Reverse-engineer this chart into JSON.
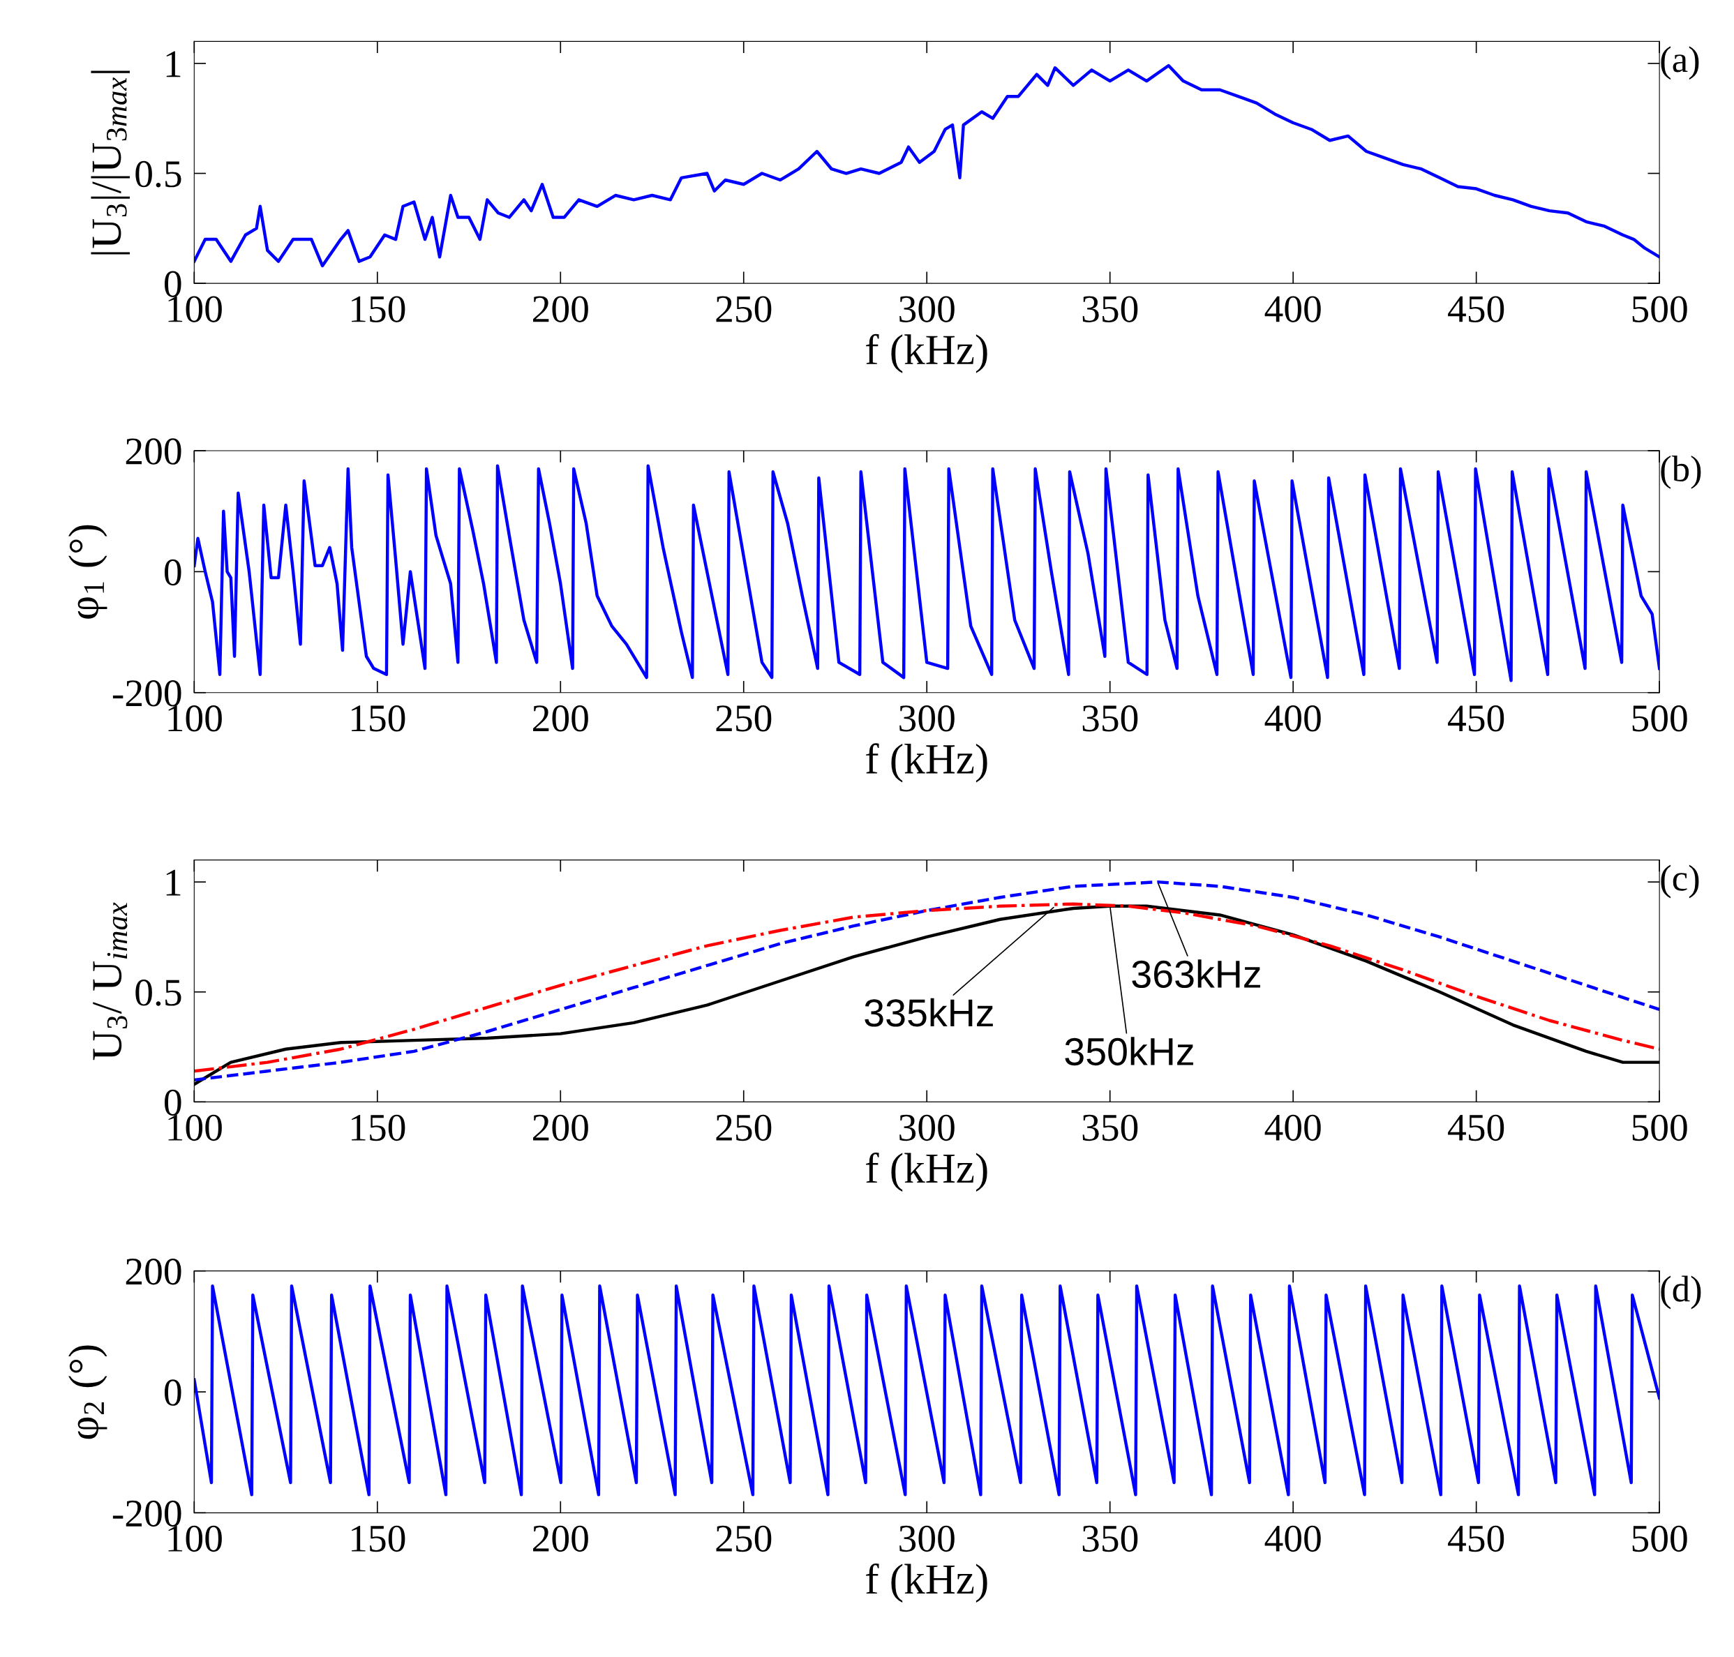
{
  "chart_data": [
    {
      "type": "line",
      "xlabel": "f (kHz)",
      "ylabel": "|U$_{3}$|/|U$_{3max}$|",
      "xlim": [
        100,
        500
      ],
      "xticks": [
        100,
        150,
        200,
        250,
        300,
        350,
        400,
        450,
        500
      ],
      "ylim": [
        0,
        1.1
      ],
      "yticks": [
        0,
        0.5,
        1
      ],
      "annotations": [
        "(a)"
      ],
      "series": [
        {
          "color": "#0000ff",
          "line_style": "solid",
          "x": [
            100,
            103,
            106,
            110,
            114,
            117,
            118,
            120,
            123,
            127,
            132,
            135,
            140,
            142,
            145,
            148,
            152,
            155,
            157,
            160,
            163,
            165,
            167,
            170,
            172,
            175,
            178,
            180,
            183,
            186,
            190,
            192,
            195,
            198,
            201,
            205,
            210,
            215,
            220,
            225,
            230,
            233,
            240,
            242,
            245,
            250,
            255,
            260,
            265,
            270,
            274,
            278,
            282,
            287,
            293,
            295,
            298,
            302,
            305,
            307,
            309,
            310,
            315,
            318,
            322,
            325,
            330,
            333,
            335,
            340,
            345,
            350,
            355,
            360,
            366,
            370,
            375,
            380,
            385,
            390,
            395,
            400,
            405,
            410,
            415,
            420,
            425,
            430,
            435,
            440,
            445,
            450,
            455,
            460,
            465,
            470,
            475,
            480,
            485,
            490,
            493,
            496,
            500
          ],
          "values": [
            0.1,
            0.2,
            0.2,
            0.1,
            0.22,
            0.25,
            0.35,
            0.15,
            0.1,
            0.2,
            0.2,
            0.08,
            0.2,
            0.24,
            0.1,
            0.12,
            0.22,
            0.2,
            0.35,
            0.37,
            0.2,
            0.3,
            0.12,
            0.4,
            0.3,
            0.3,
            0.2,
            0.38,
            0.32,
            0.3,
            0.38,
            0.33,
            0.45,
            0.3,
            0.3,
            0.38,
            0.35,
            0.4,
            0.38,
            0.4,
            0.38,
            0.48,
            0.5,
            0.42,
            0.47,
            0.45,
            0.5,
            0.47,
            0.52,
            0.6,
            0.52,
            0.5,
            0.52,
            0.5,
            0.55,
            0.62,
            0.55,
            0.6,
            0.7,
            0.72,
            0.48,
            0.72,
            0.78,
            0.75,
            0.85,
            0.85,
            0.95,
            0.9,
            0.98,
            0.9,
            0.97,
            0.92,
            0.97,
            0.92,
            0.99,
            0.92,
            0.88,
            0.88,
            0.85,
            0.82,
            0.77,
            0.73,
            0.7,
            0.65,
            0.67,
            0.6,
            0.57,
            0.54,
            0.52,
            0.48,
            0.44,
            0.43,
            0.4,
            0.38,
            0.35,
            0.33,
            0.32,
            0.28,
            0.26,
            0.22,
            0.2,
            0.16,
            0.12
          ]
        }
      ]
    },
    {
      "type": "line",
      "xlabel": "f (kHz)",
      "ylabel": "φ$_{1}$ (°)",
      "xlim": [
        100,
        500
      ],
      "xticks": [
        100,
        150,
        200,
        250,
        300,
        350,
        400,
        450,
        500
      ],
      "ylim": [
        -200,
        200
      ],
      "yticks": [
        -200,
        0,
        200
      ],
      "annotations": [
        "(b)"
      ],
      "series": [
        {
          "color": "#0000ff",
          "line_style": "solid",
          "x": [
            100,
            101,
            103,
            105,
            107,
            108,
            109,
            110,
            111,
            112,
            115,
            118,
            119,
            121,
            123,
            125,
            127,
            129,
            130,
            133,
            135,
            137,
            139,
            140.5,
            142,
            143,
            145,
            147,
            149,
            152.5,
            152.9,
            155,
            157,
            159,
            161,
            163,
            163.4,
            166,
            168,
            170,
            172,
            172.4,
            176,
            179,
            182.5,
            182.8,
            186,
            190,
            193.5,
            194,
            197,
            200,
            203.3,
            203.6,
            207,
            210,
            214,
            218,
            223.5,
            223.9,
            228,
            233,
            236,
            236.3,
            245.7,
            246,
            255,
            257.7,
            258,
            262,
            266,
            270.2,
            270.5,
            276,
            281.7,
            282,
            288,
            293.7,
            294,
            300,
            305.7,
            306,
            312,
            317.7,
            318,
            324,
            329.3,
            329.6,
            334,
            338.7,
            339,
            344,
            348.6,
            348.9,
            355,
            360.1,
            360.4,
            365,
            368.3,
            368.6,
            374,
            379.2,
            379.5,
            389.1,
            389.4,
            399.4,
            399.7,
            409.4,
            409.7,
            419.3,
            419.6,
            429,
            429.3,
            439.3,
            439.6,
            449.5,
            449.8,
            459.5,
            459.8,
            469.5,
            469.8,
            479.7,
            480,
            489.7,
            490,
            495,
            498,
            500
          ],
          "values": [
            10,
            55,
            0,
            -50,
            -170,
            100,
            0,
            -10,
            -140,
            130,
            0,
            -170,
            110,
            -10,
            -10,
            110,
            0,
            -120,
            150,
            10,
            10,
            40,
            -20,
            -130,
            170,
            40,
            -50,
            -140,
            -160,
            -170,
            160,
            20,
            -120,
            0,
            -80,
            -160,
            170,
            60,
            20,
            -20,
            -150,
            170,
            70,
            -20,
            -150,
            175,
            60,
            -80,
            -150,
            170,
            80,
            -20,
            -160,
            170,
            80,
            -40,
            -90,
            -120,
            -175,
            175,
            40,
            -100,
            -175,
            110,
            -170,
            165,
            -150,
            -175,
            165,
            80,
            -40,
            -160,
            155,
            -150,
            -170,
            165,
            -150,
            -175,
            170,
            -150,
            -160,
            170,
            -90,
            -170,
            170,
            -80,
            -160,
            170,
            0,
            -170,
            165,
            30,
            -140,
            170,
            -150,
            -170,
            160,
            -80,
            -160,
            170,
            -40,
            -170,
            165,
            -170,
            150,
            -175,
            150,
            -175,
            155,
            -170,
            160,
            -160,
            170,
            -150,
            165,
            -170,
            170,
            -180,
            165,
            -170,
            170,
            -160,
            165,
            -150,
            110,
            -40,
            -70,
            -160
          ]
        }
      ]
    },
    {
      "type": "line",
      "xlabel": "f (kHz)",
      "ylabel": "U$_{3}$/ U$_{imax}$",
      "xlim": [
        100,
        500
      ],
      "xticks": [
        100,
        150,
        200,
        250,
        300,
        350,
        400,
        450,
        500
      ],
      "ylim": [
        0,
        1.1
      ],
      "yticks": [
        0,
        0.5,
        1
      ],
      "annotations": [
        "(c)",
        {
          "text": "335kHz",
          "x": 335,
          "y": 0.89
        },
        {
          "text": "350kHz",
          "x": 350,
          "y": 0.89
        },
        {
          "text": "363kHz",
          "x": 363,
          "y": 1.0
        }
      ],
      "series": [
        {
          "color": "#000000",
          "line_style": "solid",
          "x": [
            100,
            110,
            125,
            140,
            160,
            180,
            200,
            220,
            240,
            260,
            280,
            300,
            320,
            340,
            350,
            360,
            380,
            400,
            420,
            440,
            460,
            480,
            490,
            500
          ],
          "values": [
            0.08,
            0.18,
            0.24,
            0.27,
            0.28,
            0.29,
            0.31,
            0.36,
            0.44,
            0.55,
            0.66,
            0.75,
            0.83,
            0.88,
            0.89,
            0.89,
            0.85,
            0.76,
            0.64,
            0.5,
            0.35,
            0.23,
            0.18,
            0.18
          ]
        },
        {
          "color": "#0000ff",
          "line_style": "dashed",
          "x": [
            100,
            120,
            140,
            160,
            180,
            200,
            220,
            240,
            260,
            280,
            300,
            320,
            340,
            363,
            380,
            400,
            420,
            440,
            460,
            480,
            500
          ],
          "values": [
            0.1,
            0.14,
            0.18,
            0.23,
            0.32,
            0.42,
            0.52,
            0.62,
            0.72,
            0.8,
            0.87,
            0.93,
            0.98,
            1.0,
            0.98,
            0.93,
            0.85,
            0.75,
            0.64,
            0.53,
            0.42
          ]
        },
        {
          "color": "#ff0000",
          "line_style": "dashdot",
          "x": [
            100,
            120,
            140,
            160,
            180,
            200,
            220,
            240,
            260,
            280,
            300,
            320,
            340,
            355,
            370,
            390,
            410,
            430,
            450,
            470,
            490,
            500
          ],
          "values": [
            0.14,
            0.18,
            0.24,
            0.33,
            0.43,
            0.53,
            0.62,
            0.71,
            0.78,
            0.84,
            0.87,
            0.89,
            0.9,
            0.89,
            0.86,
            0.8,
            0.71,
            0.6,
            0.48,
            0.37,
            0.28,
            0.24
          ]
        }
      ]
    },
    {
      "type": "line",
      "xlabel": "f (kHz)",
      "ylabel": "φ$_{2}$ (°)",
      "xlim": [
        100,
        500
      ],
      "xticks": [
        100,
        150,
        200,
        250,
        300,
        350,
        400,
        450,
        500
      ],
      "ylim": [
        -200,
        200
      ],
      "yticks": [
        -200,
        0,
        200
      ],
      "annotations": [
        "(d)"
      ],
      "series": [
        {
          "color": "#0000ff",
          "line_style": "solid",
          "x": [
            100,
            104.7,
            105,
            115.7,
            116,
            126.3,
            126.6,
            137.2,
            137.5,
            147.7,
            148,
            158.7,
            159,
            168.7,
            169,
            179.3,
            179.6,
            189.3,
            189.6,
            200.1,
            200.4,
            210.4,
            210.7,
            220.7,
            221,
            231.3,
            231.6,
            241.3,
            241.6,
            252.5,
            252.8,
            262.7,
            263,
            273,
            273.3,
            283.3,
            283.6,
            294.1,
            294.4,
            304.7,
            305,
            314.7,
            315,
            325.6,
            325.9,
            336.1,
            336.4,
            346.4,
            346.7,
            357,
            357.3,
            367.5,
            367.8,
            377.7,
            378,
            388.1,
            388.4,
            398.7,
            399,
            408.7,
            409,
            419.5,
            419.8,
            429.7,
            430,
            440.3,
            440.6,
            450.6,
            450.9,
            461.5,
            461.8,
            471.7,
            472,
            482.3,
            482.6,
            492.3,
            492.6,
            500
          ],
          "values": [
            20,
            -150,
            175,
            -170,
            160,
            -150,
            175,
            -150,
            160,
            -170,
            175,
            -150,
            160,
            -170,
            175,
            -150,
            160,
            -170,
            175,
            -150,
            160,
            -170,
            175,
            -150,
            160,
            -170,
            175,
            -150,
            160,
            -170,
            175,
            -150,
            160,
            -170,
            175,
            -150,
            160,
            -170,
            175,
            -150,
            160,
            -170,
            175,
            -150,
            160,
            -170,
            175,
            -150,
            160,
            -170,
            175,
            -150,
            160,
            -170,
            175,
            -150,
            160,
            -170,
            175,
            -150,
            160,
            -170,
            175,
            -150,
            160,
            -170,
            175,
            -150,
            160,
            -170,
            175,
            -150,
            160,
            -170,
            175,
            -150,
            160,
            -10
          ]
        }
      ]
    }
  ]
}
